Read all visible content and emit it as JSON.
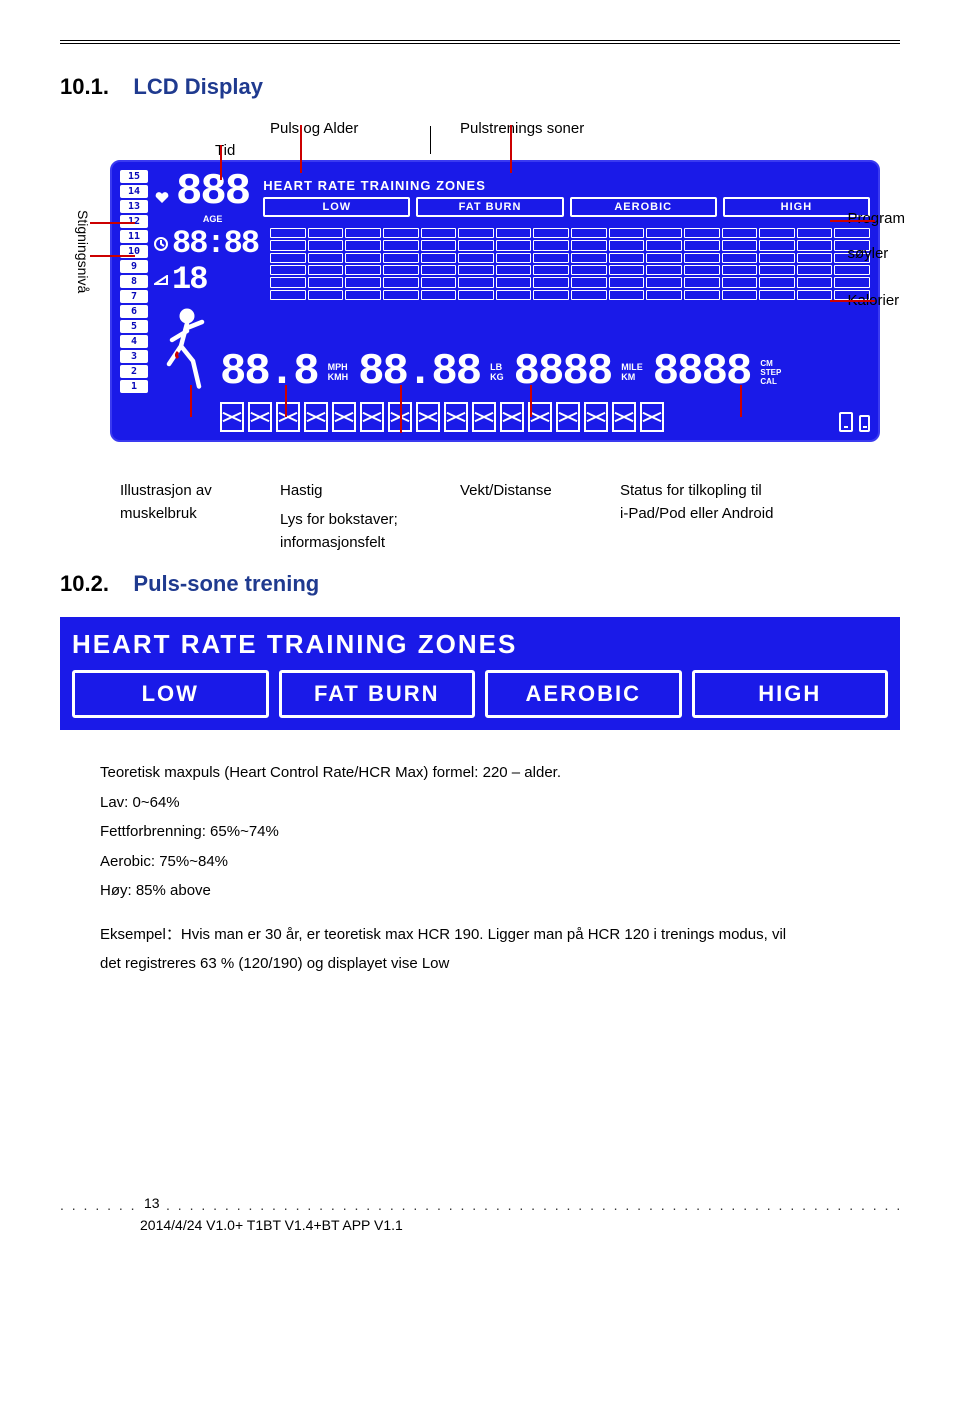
{
  "section1": {
    "num": "10.1.",
    "title": "LCD Display"
  },
  "section2": {
    "num": "10.2.",
    "title": "Puls-sone trening"
  },
  "callouts_top": {
    "puls_alder": "Puls og Alder",
    "tid": "Tid",
    "pulstrening": "Pulstrenings soner"
  },
  "lcd": {
    "levels": [
      "15",
      "14",
      "13",
      "12",
      "11",
      "10",
      "9",
      "8",
      "7",
      "6",
      "5",
      "4",
      "3",
      "2",
      "1"
    ],
    "hrz_title": "HEART RATE TRAINING ZONES",
    "zones": [
      "LOW",
      "FAT BURN",
      "AEROBIC",
      "HIGH"
    ],
    "age_label": "AGE",
    "age_seg": "888",
    "time_seg": "88:88",
    "incline_seg": "18",
    "speed_seg": "88.8",
    "speed_units": [
      "MPH",
      "KMH"
    ],
    "weight_seg": "88.88",
    "weight_units": [
      "LB",
      "KG"
    ],
    "dist_seg": "8888",
    "dist_units": [
      "MILE",
      "KM"
    ],
    "cal_seg": "8888",
    "cal_units": [
      "CM",
      "STEP",
      "CAL"
    ],
    "segbar_count": 16
  },
  "side_label": "Stigningsnivå",
  "right_labels": {
    "program": "Program",
    "soiler": "søyler",
    "kalorier": "Kalorier"
  },
  "callouts_bottom": {
    "illustrasjon": "Illustrasjon av",
    "muskelbruk": "muskelbruk",
    "hastig": "Hastig",
    "lys": "Lys for bokstaver;",
    "info": "informasjonsfelt",
    "vekt": "Vekt/Distanse",
    "status": "Status for tilkopling til",
    "ipad": "i-Pad/Pod eller Android"
  },
  "hrz_banner": {
    "title": "HEART RATE TRAINING ZONES",
    "zones": [
      "LOW",
      "FAT BURN",
      "AEROBIC",
      "HIGH"
    ]
  },
  "body": {
    "l1": "Teoretisk maxpuls (Heart Control Rate/HCR Max) formel: 220 – alder.",
    "l2": "Lav: 0~64%",
    "l3": "Fettforbrenning: 65%~74%",
    "l4": "Aerobic: 75%~84%",
    "l5": "Høy: 85% above",
    "l6": "Eksempel：Hvis man er 30 år, er teoretisk max HCR 190.    Ligger man på HCR 120 i trenings modus, vil",
    "l7": "det registreres 63 % (120/190) og displayet vise Low"
  },
  "footer": {
    "page": "13",
    "version": "2014/4/24 V1.0+ T1BT V1.4+BT APP V1.1"
  },
  "colors": {
    "lcd_bg": "#1a1ae8",
    "lcd_fg": "#ffffff",
    "callout_line": "#c00000",
    "heading_blue": "#1f3a8f"
  }
}
